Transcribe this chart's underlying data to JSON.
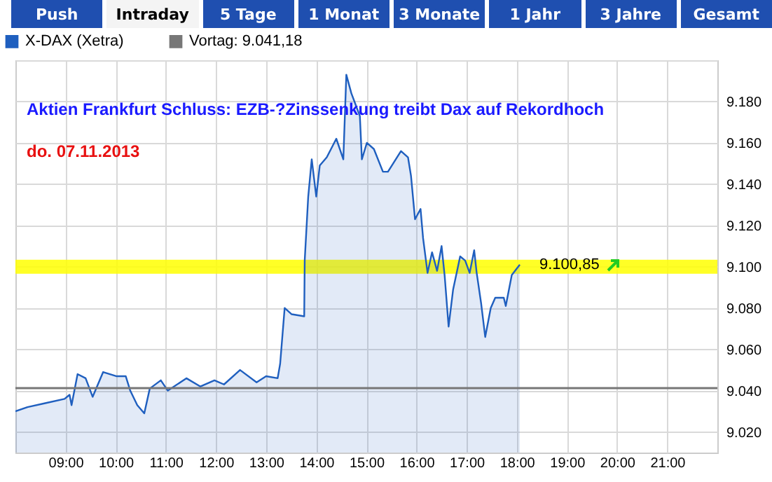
{
  "chart_data": {
    "type": "area",
    "title": "Aktien Frankfurt Schluss: EZB-?Zinssenkung treibt Dax auf Rekordhoch",
    "subtitle": "do. 07.11.2013",
    "x": [
      8.0,
      8.24,
      8.61,
      8.98,
      9.08,
      9.12,
      9.24,
      9.4,
      9.54,
      9.75,
      10.01,
      10.2,
      10.29,
      10.43,
      10.57,
      10.68,
      10.9,
      11.04,
      11.41,
      11.69,
      11.97,
      12.16,
      12.48,
      12.81,
      13.0,
      13.23,
      13.28,
      13.37,
      13.51,
      13.76,
      13.77,
      13.84,
      13.91,
      14.0,
      14.07,
      14.21,
      14.4,
      14.54,
      14.6,
      14.7,
      14.87,
      14.91,
      15.01,
      15.15,
      15.33,
      15.43,
      15.69,
      15.83,
      15.89,
      15.97,
      16.08,
      16.13,
      16.22,
      16.31,
      16.41,
      16.5,
      16.56,
      16.64,
      16.73,
      16.87,
      16.97,
      17.06,
      17.15,
      17.2,
      17.29,
      17.37,
      17.48,
      17.57,
      17.74,
      17.78,
      17.9,
      18.06
    ],
    "series": [
      {
        "name": "X-DAX (Xetra)",
        "color": "#1f5fbf",
        "values": [
          9030,
          9032,
          9034,
          9036,
          9038,
          9033,
          9048,
          9046,
          9037,
          9049,
          9047,
          9047,
          9040,
          9033,
          9029,
          9041,
          9045,
          9040,
          9046,
          9042,
          9045,
          9043,
          9050,
          9044,
          9047,
          9046,
          9053,
          9080,
          9077,
          9076,
          9103,
          9134,
          9152,
          9134,
          9149,
          9153,
          9162,
          9152,
          9193,
          9184,
          9173,
          9152,
          9160,
          9157,
          9146,
          9146,
          9156,
          9153,
          9144,
          9123,
          9128,
          9114,
          9097,
          9107,
          9098,
          9110,
          9096,
          9071,
          9089,
          9105,
          9103,
          9097,
          9108,
          9097,
          9082,
          9066,
          9080,
          9085,
          9085,
          9081,
          9096,
          9101
        ]
      }
    ],
    "xlim": [
      8,
      22
    ],
    "xticks": [
      {
        "value": 9,
        "label": "09:00"
      },
      {
        "value": 10,
        "label": "10:00"
      },
      {
        "value": 11,
        "label": "11:00"
      },
      {
        "value": 12,
        "label": "12:00"
      },
      {
        "value": 13,
        "label": "13:00"
      },
      {
        "value": 14,
        "label": "14:00"
      },
      {
        "value": 15,
        "label": "15:00"
      },
      {
        "value": 16,
        "label": "16:00"
      },
      {
        "value": 17,
        "label": "17:00"
      },
      {
        "value": 18,
        "label": "18:00"
      },
      {
        "value": 19,
        "label": "19:00"
      },
      {
        "value": 20,
        "label": "20:00"
      },
      {
        "value": 21,
        "label": "21:00"
      }
    ],
    "ylim": [
      9010,
      9200
    ],
    "yticks": [
      {
        "value": 9020,
        "label": "9.020"
      },
      {
        "value": 9040,
        "label": "9.040"
      },
      {
        "value": 9060,
        "label": "9.060"
      },
      {
        "value": 9080,
        "label": "9.080"
      },
      {
        "value": 9100,
        "label": "9.100"
      },
      {
        "value": 9120,
        "label": "9.120"
      },
      {
        "value": 9140,
        "label": "9.140"
      },
      {
        "value": 9160,
        "label": "9.160"
      },
      {
        "value": 9180,
        "label": "9.180"
      },
      {
        "value": 9200,
        "label": null
      }
    ],
    "ref_lines": [
      {
        "axis": "y",
        "value": 9041.18,
        "label": "Vortag: 9.041,18",
        "color": "#777777"
      }
    ],
    "bands": [
      {
        "axis": "y",
        "from": 9096.6,
        "to": 9103.4,
        "color": "#ffff00"
      }
    ],
    "annotations": [
      "Push",
      "Intraday",
      "5 Tage",
      "1 Monat",
      "3 Monate",
      "1 Jahr",
      "3 Jahre",
      "Gesamt",
      {
        "text": "9.100,85",
        "x": 18.06,
        "y": 9100.85
      }
    ],
    "grid": true,
    "legend": "top left"
  }
}
